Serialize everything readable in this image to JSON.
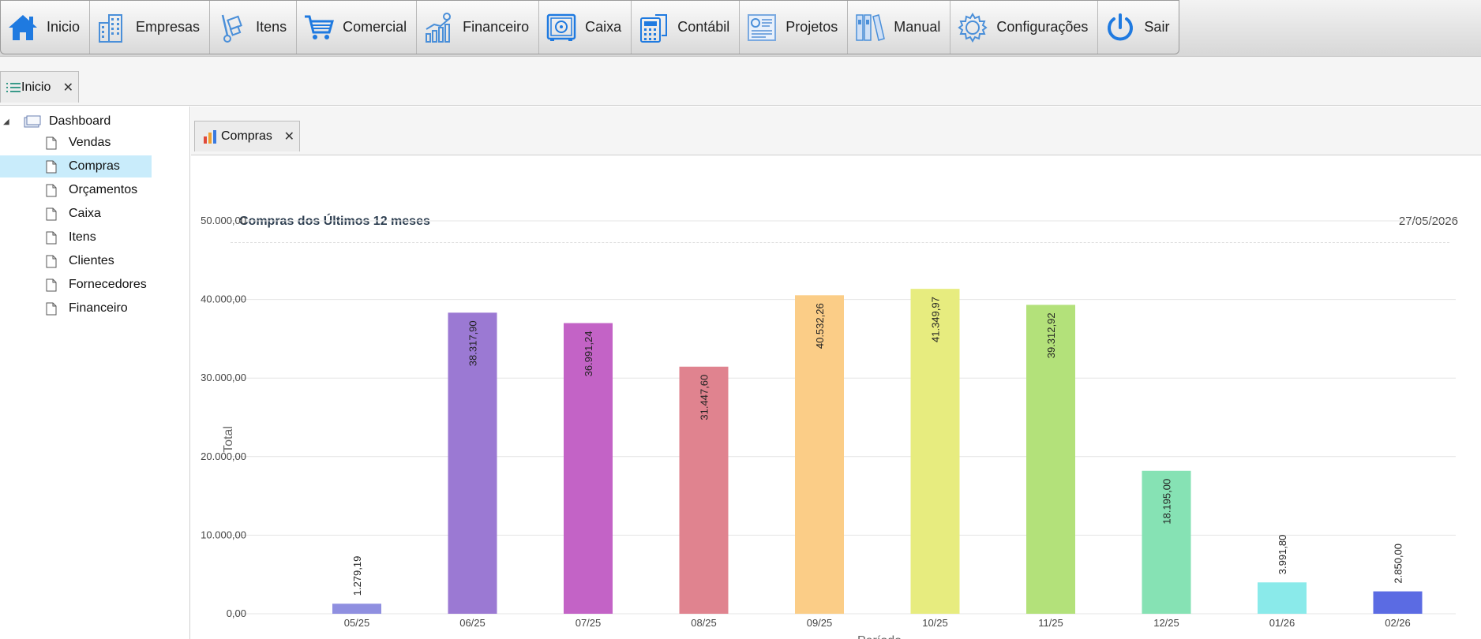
{
  "menu": [
    {
      "label": "Inicio",
      "icon": "home-icon"
    },
    {
      "label": "Empresas",
      "icon": "buildings-icon"
    },
    {
      "label": "Itens",
      "icon": "hand-truck-icon"
    },
    {
      "label": "Comercial",
      "icon": "cart-icon"
    },
    {
      "label": "Financeiro",
      "icon": "growth-chart-icon"
    },
    {
      "label": "Caixa",
      "icon": "safe-icon"
    },
    {
      "label": "Contábil",
      "icon": "calculator-icon"
    },
    {
      "label": "Projetos",
      "icon": "dashboard-board-icon"
    },
    {
      "label": "Manual",
      "icon": "binders-icon"
    },
    {
      "label": "Configurações",
      "icon": "gear-icon"
    },
    {
      "label": "Sair",
      "icon": "power-icon"
    }
  ],
  "main_tab": {
    "label": "Inicio",
    "close": "✕"
  },
  "sidebar": {
    "root": "Dashboard",
    "items": [
      {
        "label": "Vendas",
        "selected": false
      },
      {
        "label": "Compras",
        "selected": true
      },
      {
        "label": "Orçamentos",
        "selected": false
      },
      {
        "label": "Caixa",
        "selected": false
      },
      {
        "label": "Itens",
        "selected": false
      },
      {
        "label": "Clientes",
        "selected": false
      },
      {
        "label": "Fornecedores",
        "selected": false
      },
      {
        "label": "Financeiro",
        "selected": false
      }
    ]
  },
  "sub_tab": {
    "label": "Compras",
    "close": "✕"
  },
  "chart_header": {
    "title": "Compras dos Últimos 12 meses",
    "date": "27/05/2026"
  },
  "colors": {
    "accent_blue": "#1f7ae0",
    "selected_bg": "#c9ecfb"
  },
  "chart_data": {
    "type": "bar",
    "title": "Compras dos Últimos 12 meses",
    "ylabel": "Total",
    "xlabel": "Período",
    "ylim": [
      0,
      50000
    ],
    "yticks": [
      0,
      10000,
      20000,
      30000,
      40000,
      50000
    ],
    "ytick_labels": [
      "0,00",
      "10.000,00",
      "20.000,00",
      "30.000,00",
      "40.000,00",
      "50.000,00"
    ],
    "grid": true,
    "categories": [
      "05/25",
      "06/25",
      "07/25",
      "08/25",
      "09/25",
      "10/25",
      "11/25",
      "12/25",
      "01/26",
      "02/26"
    ],
    "values": [
      1279.19,
      38317.9,
      36991.24,
      31447.6,
      40532.26,
      41349.97,
      39312.92,
      18195.0,
      3991.8,
      2850.0
    ],
    "value_labels": [
      "1.279,19",
      "38.317,90",
      "36.991,24",
      "31.447,60",
      "40.532,26",
      "41.349,97",
      "39.312,92",
      "18.195,00",
      "3.991,80",
      "2.850,00"
    ],
    "bar_colors": [
      "#8f8fe0",
      "#9b79d3",
      "#c363c6",
      "#e0838f",
      "#fbcd87",
      "#e7ec7f",
      "#b3e17a",
      "#86e2b4",
      "#8aeaea",
      "#5b6be3"
    ]
  }
}
